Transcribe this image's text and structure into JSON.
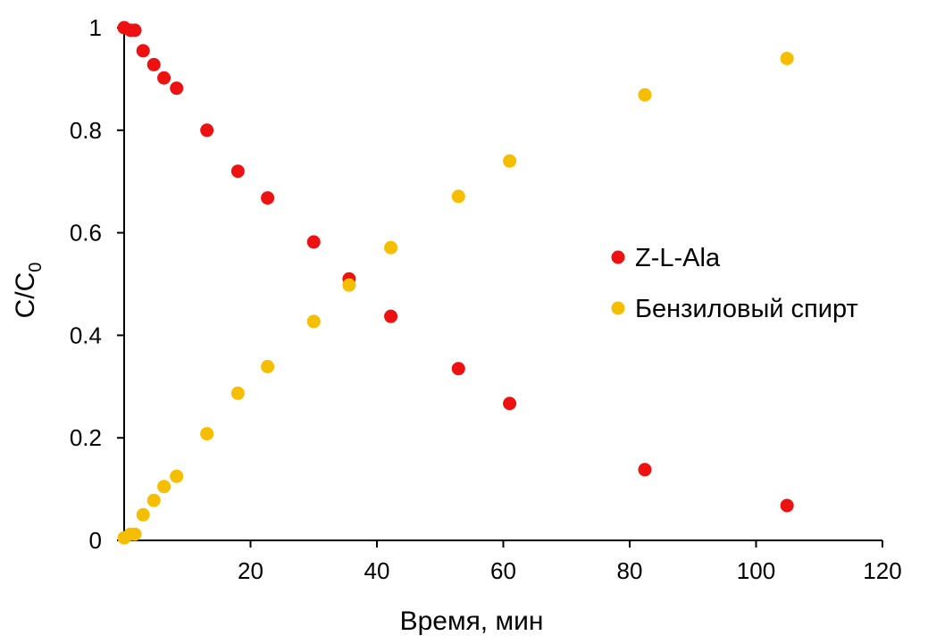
{
  "chart_data": {
    "type": "scatter",
    "title": "",
    "xlabel": "Время, мин",
    "ylabel_main": "C",
    "ylabel_sep": "/",
    "ylabel_denom": "C",
    "ylabel_sub": "0",
    "xlim": [
      0,
      120
    ],
    "ylim": [
      0,
      1
    ],
    "xticks": [
      20,
      40,
      60,
      80,
      100,
      120
    ],
    "yticks": [
      0,
      0.2,
      0.4,
      0.6,
      0.8,
      1
    ],
    "ytick_labels": [
      "0",
      "0.2",
      "0.4",
      "0.6",
      "0.8",
      "1"
    ],
    "grid": false,
    "legend_position": "right",
    "series": [
      {
        "name": "Z-L-Ala",
        "color": "#ee1111",
        "x": [
          0.0,
          1.0,
          1.7,
          3.0,
          4.7,
          6.3,
          8.3,
          13.1,
          18.0,
          22.7,
          30.0,
          35.6,
          42.2,
          52.9,
          61.0,
          82.4,
          104.9
        ],
        "y": [
          1.0,
          0.995,
          0.995,
          0.955,
          0.928,
          0.902,
          0.882,
          0.8,
          0.72,
          0.668,
          0.582,
          0.51,
          0.437,
          0.335,
          0.267,
          0.138,
          0.068
        ]
      },
      {
        "name": "Бензиловый спирт",
        "color": "#f5be00",
        "x": [
          0.0,
          1.0,
          1.7,
          3.0,
          4.7,
          6.3,
          8.3,
          13.1,
          18.0,
          22.7,
          30.0,
          35.6,
          42.2,
          52.9,
          61.0,
          82.4,
          104.9
        ],
        "y": [
          0.005,
          0.012,
          0.012,
          0.05,
          0.078,
          0.105,
          0.125,
          0.208,
          0.287,
          0.339,
          0.427,
          0.498,
          0.571,
          0.671,
          0.74,
          0.869,
          0.94
        ]
      }
    ]
  }
}
